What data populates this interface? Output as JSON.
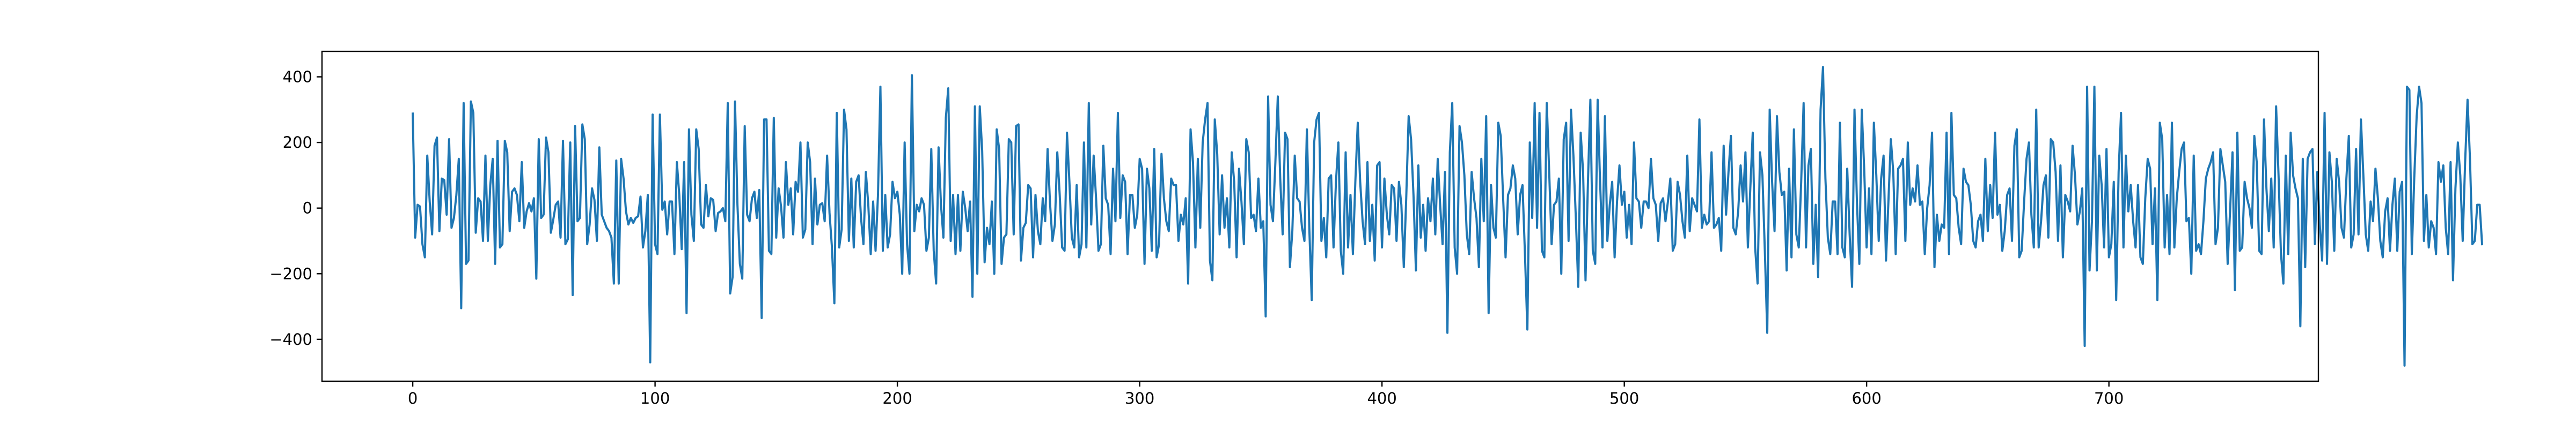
{
  "chart_data": {
    "type": "line",
    "title": "",
    "xlabel": "",
    "ylabel": "",
    "xlim": [
      -37.45,
      786.45
    ],
    "ylim": [
      -527.5,
      477.5
    ],
    "xticks": [
      0,
      100,
      200,
      300,
      400,
      500,
      600,
      700
    ],
    "yticks": [
      -400,
      -200,
      0,
      200,
      400
    ],
    "xtick_labels": [
      "0",
      "100",
      "200",
      "300",
      "400",
      "500",
      "600",
      "700"
    ],
    "ytick_labels": [
      "−400",
      "−200",
      "0",
      "200",
      "400"
    ],
    "grid": false,
    "legend": "none",
    "series": [
      {
        "color": "#1f77b4",
        "x_start": 0,
        "x_step": 1,
        "values": [
          288,
          -90,
          10,
          5,
          -110,
          -150,
          160,
          20,
          -80,
          190,
          215,
          -70,
          90,
          85,
          -20,
          210,
          -60,
          -30,
          40,
          150,
          -305,
          320,
          -170,
          -160,
          325,
          290,
          -75,
          30,
          20,
          -100,
          160,
          -100,
          70,
          150,
          -170,
          205,
          -120,
          -110,
          205,
          170,
          -70,
          50,
          60,
          40,
          -40,
          140,
          -60,
          -10,
          15,
          -10,
          30,
          -215,
          210,
          -30,
          -20,
          215,
          170,
          -75,
          -35,
          10,
          20,
          -90,
          205,
          -110,
          -95,
          200,
          -265,
          250,
          -40,
          -30,
          255,
          210,
          -110,
          -50,
          60,
          25,
          -100,
          185,
          -20,
          -40,
          -60,
          -70,
          -90,
          -230,
          145,
          -230,
          150,
          90,
          -10,
          -50,
          -30,
          -45,
          -30,
          -25,
          35,
          -120,
          -70,
          40,
          -470,
          285,
          -110,
          -140,
          285,
          -5,
          20,
          -80,
          20,
          20,
          -140,
          140,
          40,
          -125,
          140,
          -320,
          240,
          -20,
          -100,
          240,
          180,
          -50,
          -60,
          70,
          -25,
          30,
          25,
          -70,
          -15,
          -10,
          0,
          -40,
          320,
          -260,
          -210,
          325,
          10,
          -170,
          -215,
          250,
          -20,
          -40,
          30,
          50,
          -30,
          55,
          -335,
          270,
          270,
          -130,
          -140,
          275,
          -90,
          60,
          5,
          -90,
          140,
          10,
          60,
          -80,
          80,
          50,
          200,
          -90,
          -65,
          200,
          140,
          -110,
          90,
          -50,
          10,
          15,
          -40,
          160,
          -15,
          -120,
          -290,
          290,
          -120,
          -65,
          300,
          240,
          -100,
          90,
          -120,
          80,
          100,
          -30,
          -110,
          110,
          10,
          -140,
          20,
          -130,
          40,
          370,
          -130,
          40,
          -120,
          -80,
          80,
          30,
          50,
          -20,
          -200,
          200,
          -110,
          -200,
          405,
          -70,
          10,
          -10,
          30,
          10,
          -130,
          -90,
          180,
          -130,
          -230,
          185,
          10,
          -90,
          275,
          365,
          -100,
          40,
          -140,
          40,
          -130,
          50,
          0,
          -70,
          20,
          -270,
          310,
          -200,
          310,
          175,
          -165,
          -60,
          -110,
          20,
          -200,
          240,
          180,
          -170,
          -90,
          -80,
          210,
          200,
          -80,
          250,
          255,
          -160,
          -60,
          -45,
          70,
          60,
          -150,
          40,
          -70,
          -110,
          30,
          -40,
          180,
          15,
          -100,
          -50,
          170,
          40,
          -120,
          -130,
          230,
          80,
          -90,
          -120,
          70,
          -150,
          -110,
          200,
          -120,
          320,
          -50,
          160,
          30,
          -130,
          -110,
          190,
          30,
          10,
          -140,
          120,
          -40,
          290,
          -30,
          100,
          80,
          -140,
          40,
          40,
          -60,
          -20,
          150,
          120,
          -170,
          120,
          60,
          -130,
          180,
          -150,
          -110,
          165,
          30,
          -40,
          -70,
          90,
          70,
          70,
          -100,
          -20,
          -50,
          30,
          -230,
          240,
          140,
          -120,
          150,
          -60,
          200,
          270,
          320,
          -160,
          -220,
          270,
          165,
          -80,
          100,
          -60,
          30,
          -120,
          170,
          80,
          -150,
          120,
          20,
          -110,
          210,
          170,
          -30,
          -20,
          -70,
          90,
          -60,
          -40,
          -330,
          340,
          10,
          -40,
          140,
          340,
          90,
          -80,
          230,
          210,
          -180,
          -70,
          160,
          30,
          20,
          -60,
          -100,
          240,
          -60,
          -280,
          200,
          270,
          290,
          -100,
          -30,
          -150,
          90,
          100,
          -120,
          80,
          200,
          -130,
          -200,
          170,
          -120,
          40,
          -140,
          80,
          260,
          80,
          -40,
          -110,
          140,
          -100,
          10,
          -160,
          130,
          140,
          -120,
          90,
          -20,
          -80,
          70,
          60,
          -100,
          80,
          10,
          -180,
          30,
          280,
          210,
          40,
          -190,
          130,
          -90,
          10,
          -130,
          30,
          -40,
          90,
          -80,
          150,
          10,
          -110,
          110,
          -380,
          170,
          320,
          -120,
          -200,
          250,
          200,
          100,
          -80,
          -140,
          110,
          30,
          -30,
          -180,
          150,
          -40,
          280,
          -320,
          70,
          -60,
          -90,
          260,
          220,
          30,
          -150,
          40,
          60,
          130,
          90,
          -80,
          40,
          70,
          -140,
          -370,
          200,
          -30,
          320,
          -60,
          290,
          -130,
          -150,
          320,
          110,
          -110,
          10,
          20,
          90,
          -200,
          210,
          260,
          -100,
          300,
          160,
          -30,
          -240,
          230,
          110,
          -220,
          80,
          330,
          -130,
          -170,
          330,
          80,
          -120,
          280,
          -100,
          10,
          80,
          -150,
          20,
          130,
          10,
          50,
          -90,
          10,
          -110,
          200,
          30,
          20,
          -60,
          20,
          20,
          0,
          150,
          30,
          10,
          -100,
          15,
          30,
          -40,
          20,
          90,
          -130,
          -110,
          80,
          40,
          -40,
          -90,
          160,
          -70,
          30,
          10,
          -10,
          270,
          -60,
          -20,
          -50,
          -40,
          170,
          -60,
          -50,
          -30,
          -130,
          190,
          -20,
          110,
          220,
          -60,
          -80,
          -10,
          130,
          20,
          170,
          -120,
          60,
          230,
          -120,
          -230,
          170,
          100,
          -130,
          -380,
          300,
          80,
          -70,
          280,
          110,
          40,
          50,
          -190,
          120,
          -150,
          240,
          -80,
          -120,
          80,
          320,
          -120,
          130,
          180,
          -170,
          10,
          -210,
          300,
          430,
          90,
          -90,
          -140,
          20,
          20,
          -140,
          260,
          -120,
          -150,
          120,
          -80,
          -240,
          300,
          20,
          -170,
          300,
          120,
          -120,
          60,
          -140,
          260,
          100,
          -100,
          90,
          160,
          -160,
          20,
          210,
          110,
          -140,
          120,
          130,
          150,
          -100,
          200,
          10,
          60,
          20,
          130,
          10,
          20,
          -140,
          0,
          70,
          230,
          -180,
          -20,
          -100,
          -50,
          -60,
          230,
          -140,
          290,
          40,
          30,
          -60,
          -110,
          120,
          80,
          70,
          10,
          -100,
          -120,
          -40,
          -20,
          -100,
          150,
          -70,
          70,
          -30,
          230,
          -20,
          10,
          -130,
          -70,
          40,
          60,
          -100,
          190,
          240,
          -150,
          -130,
          20,
          150,
          200,
          -20,
          -120,
          300,
          -120,
          -40,
          70,
          100,
          -90,
          210,
          200,
          110,
          -100,
          130,
          -150,
          40,
          20,
          -10,
          190,
          100,
          -50,
          -10,
          60,
          -420,
          370,
          -190,
          -40,
          370,
          -190,
          160,
          70,
          -120,
          180,
          -150,
          -110,
          80,
          -280,
          110,
          290,
          -120,
          160,
          -10,
          70,
          -40,
          -120,
          70,
          -150,
          -170,
          30,
          150,
          120,
          -110,
          60,
          -280,
          260,
          210,
          -120,
          40,
          -140,
          260,
          -120,
          30,
          110,
          180,
          200,
          -40,
          -30,
          -200,
          160,
          -130,
          -110,
          -140,
          -40,
          90,
          120,
          140,
          170,
          -110,
          -60,
          180,
          130,
          80,
          -170,
          -10,
          170,
          -250,
          230,
          -130,
          -120,
          80,
          30,
          0,
          -60,
          220,
          140,
          -130,
          -140,
          270,
          60,
          -70,
          90,
          -120,
          310,
          100,
          -140,
          -230,
          160,
          -140,
          230,
          100,
          60,
          30,
          -360,
          150,
          -180,
          150,
          170,
          180,
          -110,
          110,
          -50,
          -160,
          290,
          -170,
          170,
          80,
          -130,
          150,
          80,
          -60,
          -90,
          90,
          220,
          -120,
          -80,
          180,
          -80,
          270,
          100,
          -80,
          -130,
          20,
          -40,
          120,
          30,
          -100,
          -150,
          -10,
          30,
          -130,
          10,
          90,
          -130,
          50,
          80,
          -480,
          370,
          360,
          -140,
          90,
          280,
          370,
          320,
          -100,
          40,
          -120,
          -40,
          -60,
          -140,
          140,
          80,
          130,
          -60,
          -140,
          140,
          -220,
          60,
          200,
          100,
          -100,
          140,
          330,
          150,
          -110,
          -100,
          10,
          10,
          -110
        ]
      }
    ]
  }
}
